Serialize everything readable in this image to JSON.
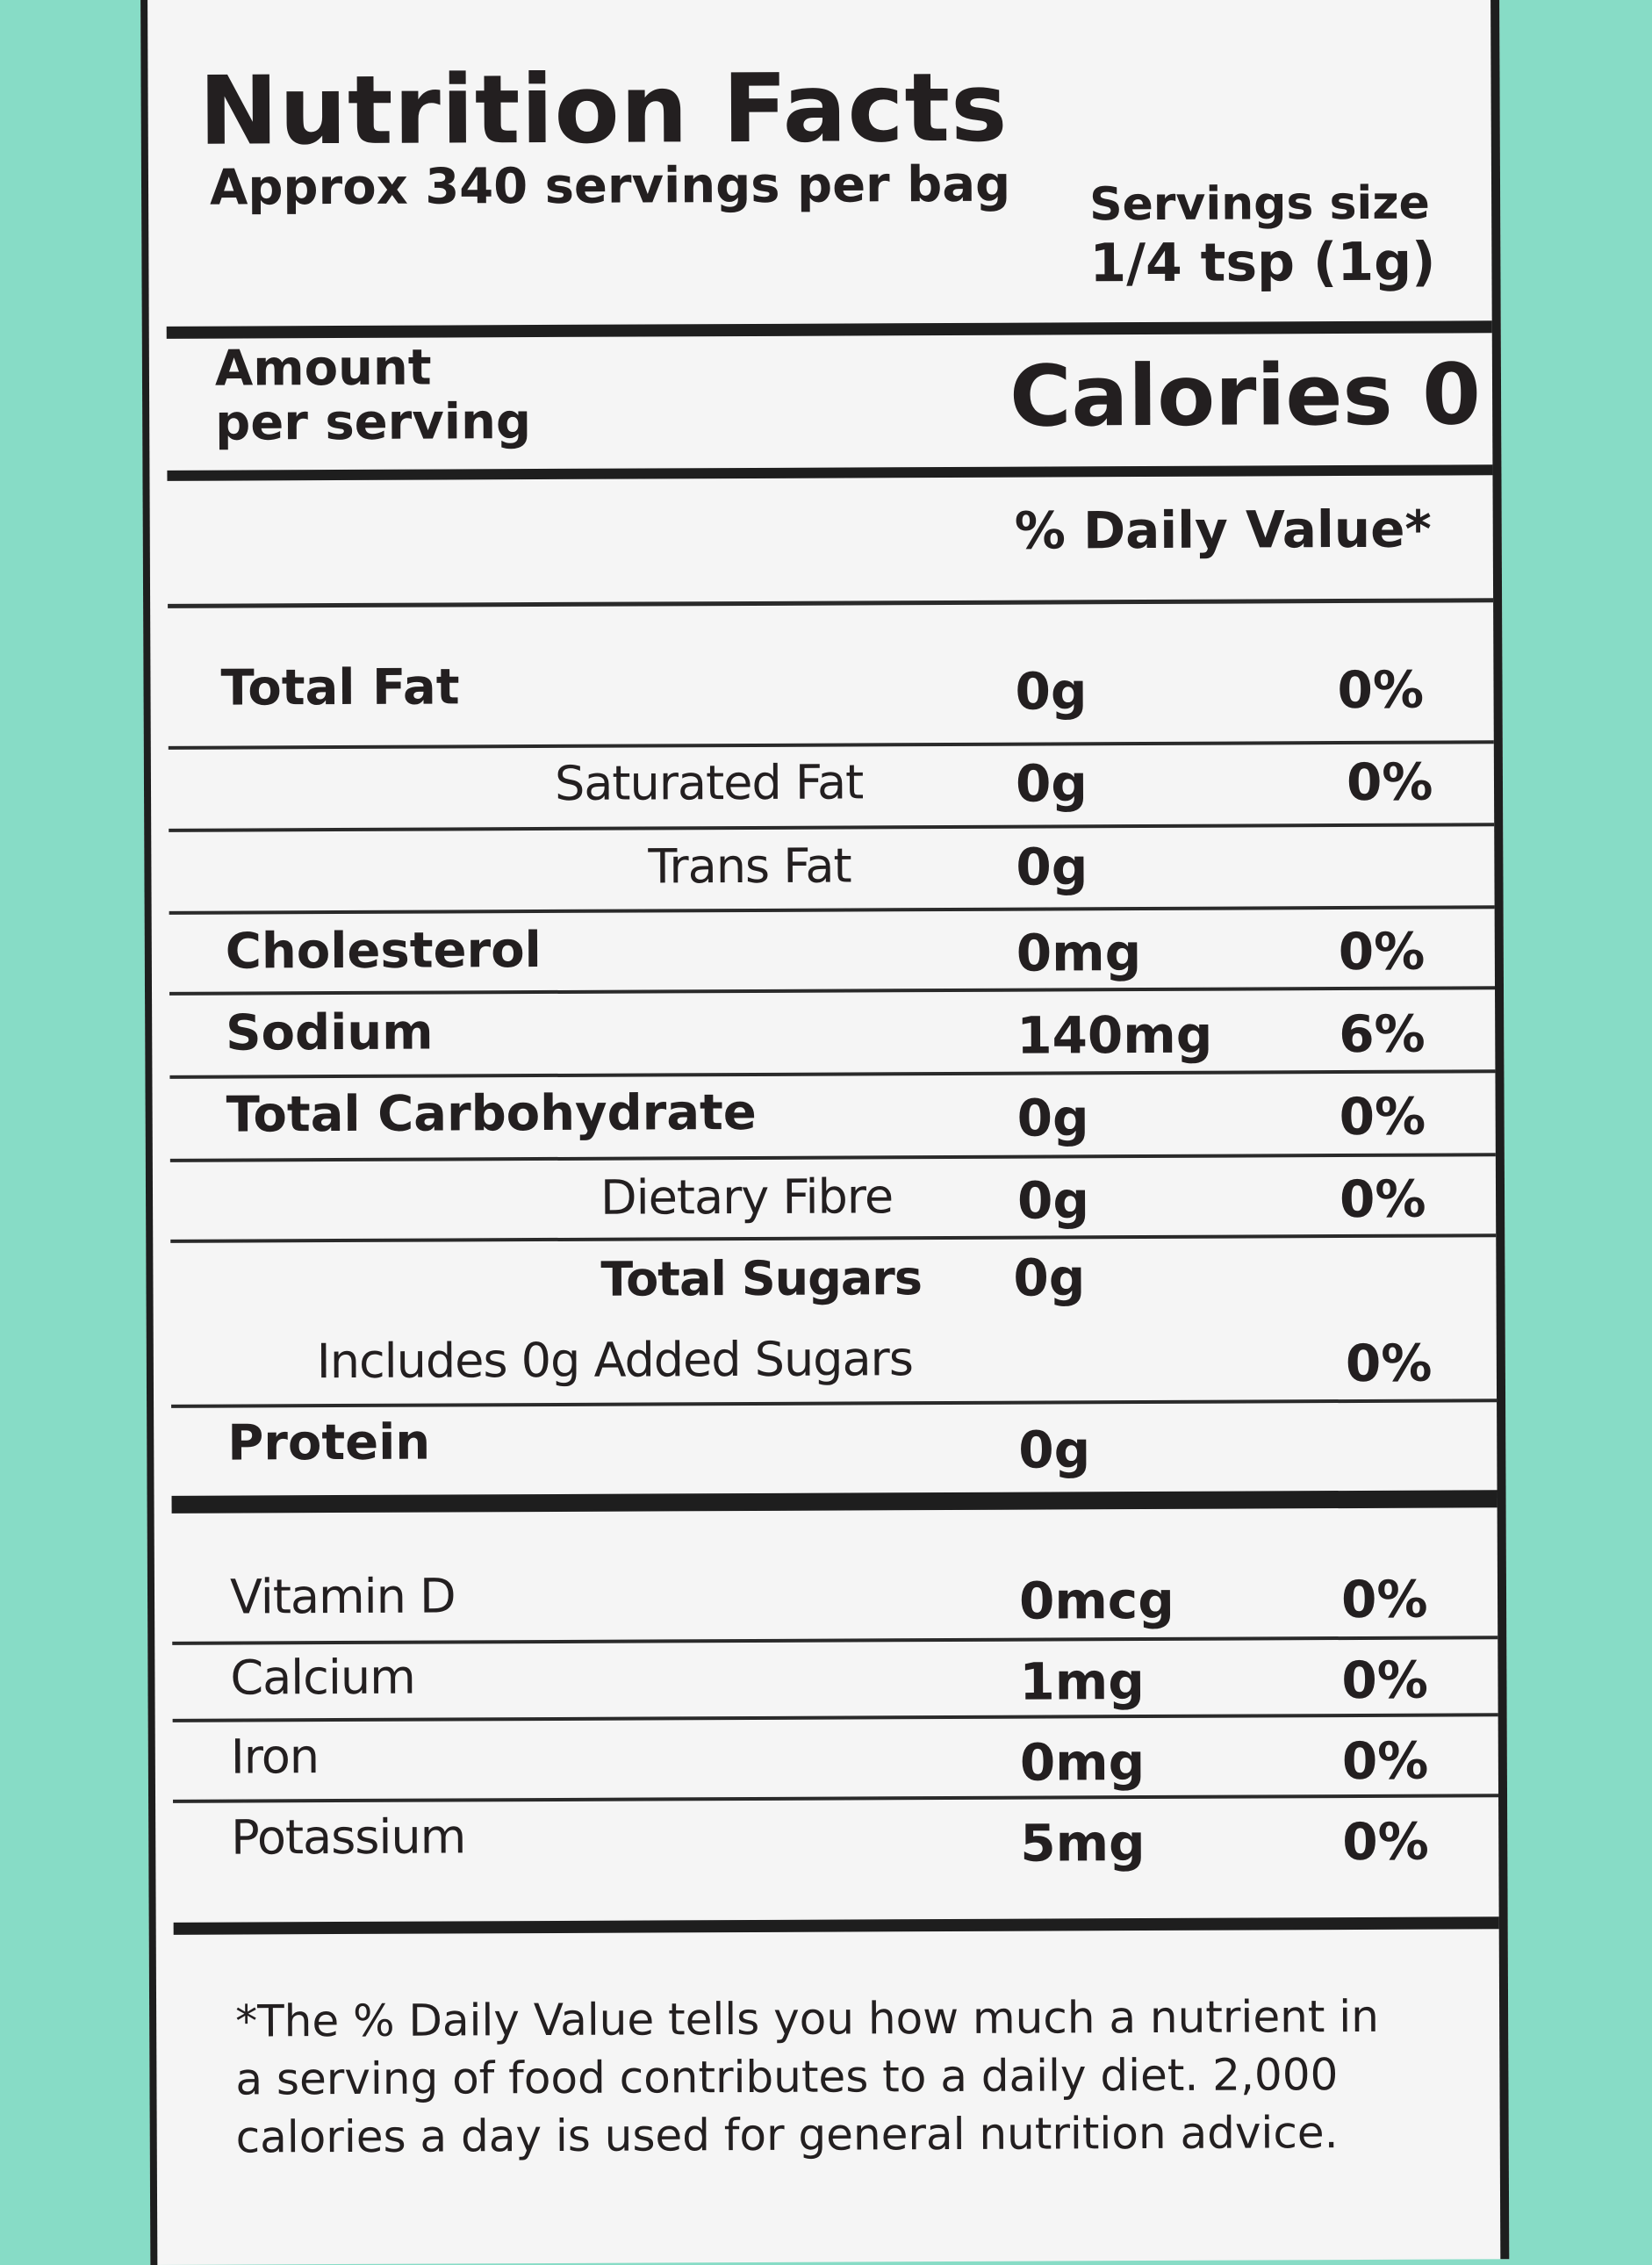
{
  "title": "Nutrition Facts",
  "servings_per_container": "Approx 340 servings per bag",
  "serving_size_label": "Servings size",
  "serving_size_value": "1/4 tsp (1g)",
  "amount_per_serving": [
    "Amount",
    "per serving"
  ],
  "calories": "Calories 0",
  "daily_value_header": "% Daily Value*",
  "nutrients": [
    {
      "name": "Total Fat",
      "amount": "0g",
      "dv": "0%"
    },
    {
      "name": "Saturated Fat",
      "amount": "0g",
      "dv": "0%"
    },
    {
      "name": "Trans Fat",
      "amount": "0g",
      "dv": ""
    },
    {
      "name": "Cholesterol",
      "amount": "0mg",
      "dv": "0%"
    },
    {
      "name": "Sodium",
      "amount": "140mg",
      "dv": "6%"
    },
    {
      "name": "Total Carbohydrate",
      "amount": "0g",
      "dv": "0%"
    },
    {
      "name": "Dietary Fibre",
      "amount": "0g",
      "dv": "0%"
    },
    {
      "name": "Total Sugars",
      "amount": "0g",
      "dv": ""
    },
    {
      "name": "Includes 0g Added Sugars",
      "amount": "",
      "dv": "0%"
    },
    {
      "name": "Protein",
      "amount": "0g",
      "dv": ""
    }
  ],
  "vitamins": [
    {
      "name": "Vitamin D",
      "amount": "0mcg",
      "dv": "0%"
    },
    {
      "name": "Calcium",
      "amount": "1mg",
      "dv": "0%"
    },
    {
      "name": "Iron",
      "amount": "0mg",
      "dv": "0%"
    },
    {
      "name": "Potassium",
      "amount": "5mg",
      "dv": "0%"
    }
  ],
  "footnote": "*The % Daily Value tells you how much a nutrient in a serving of food contributes to a daily diet. 2,000 calories a day is used for general nutrition advice."
}
